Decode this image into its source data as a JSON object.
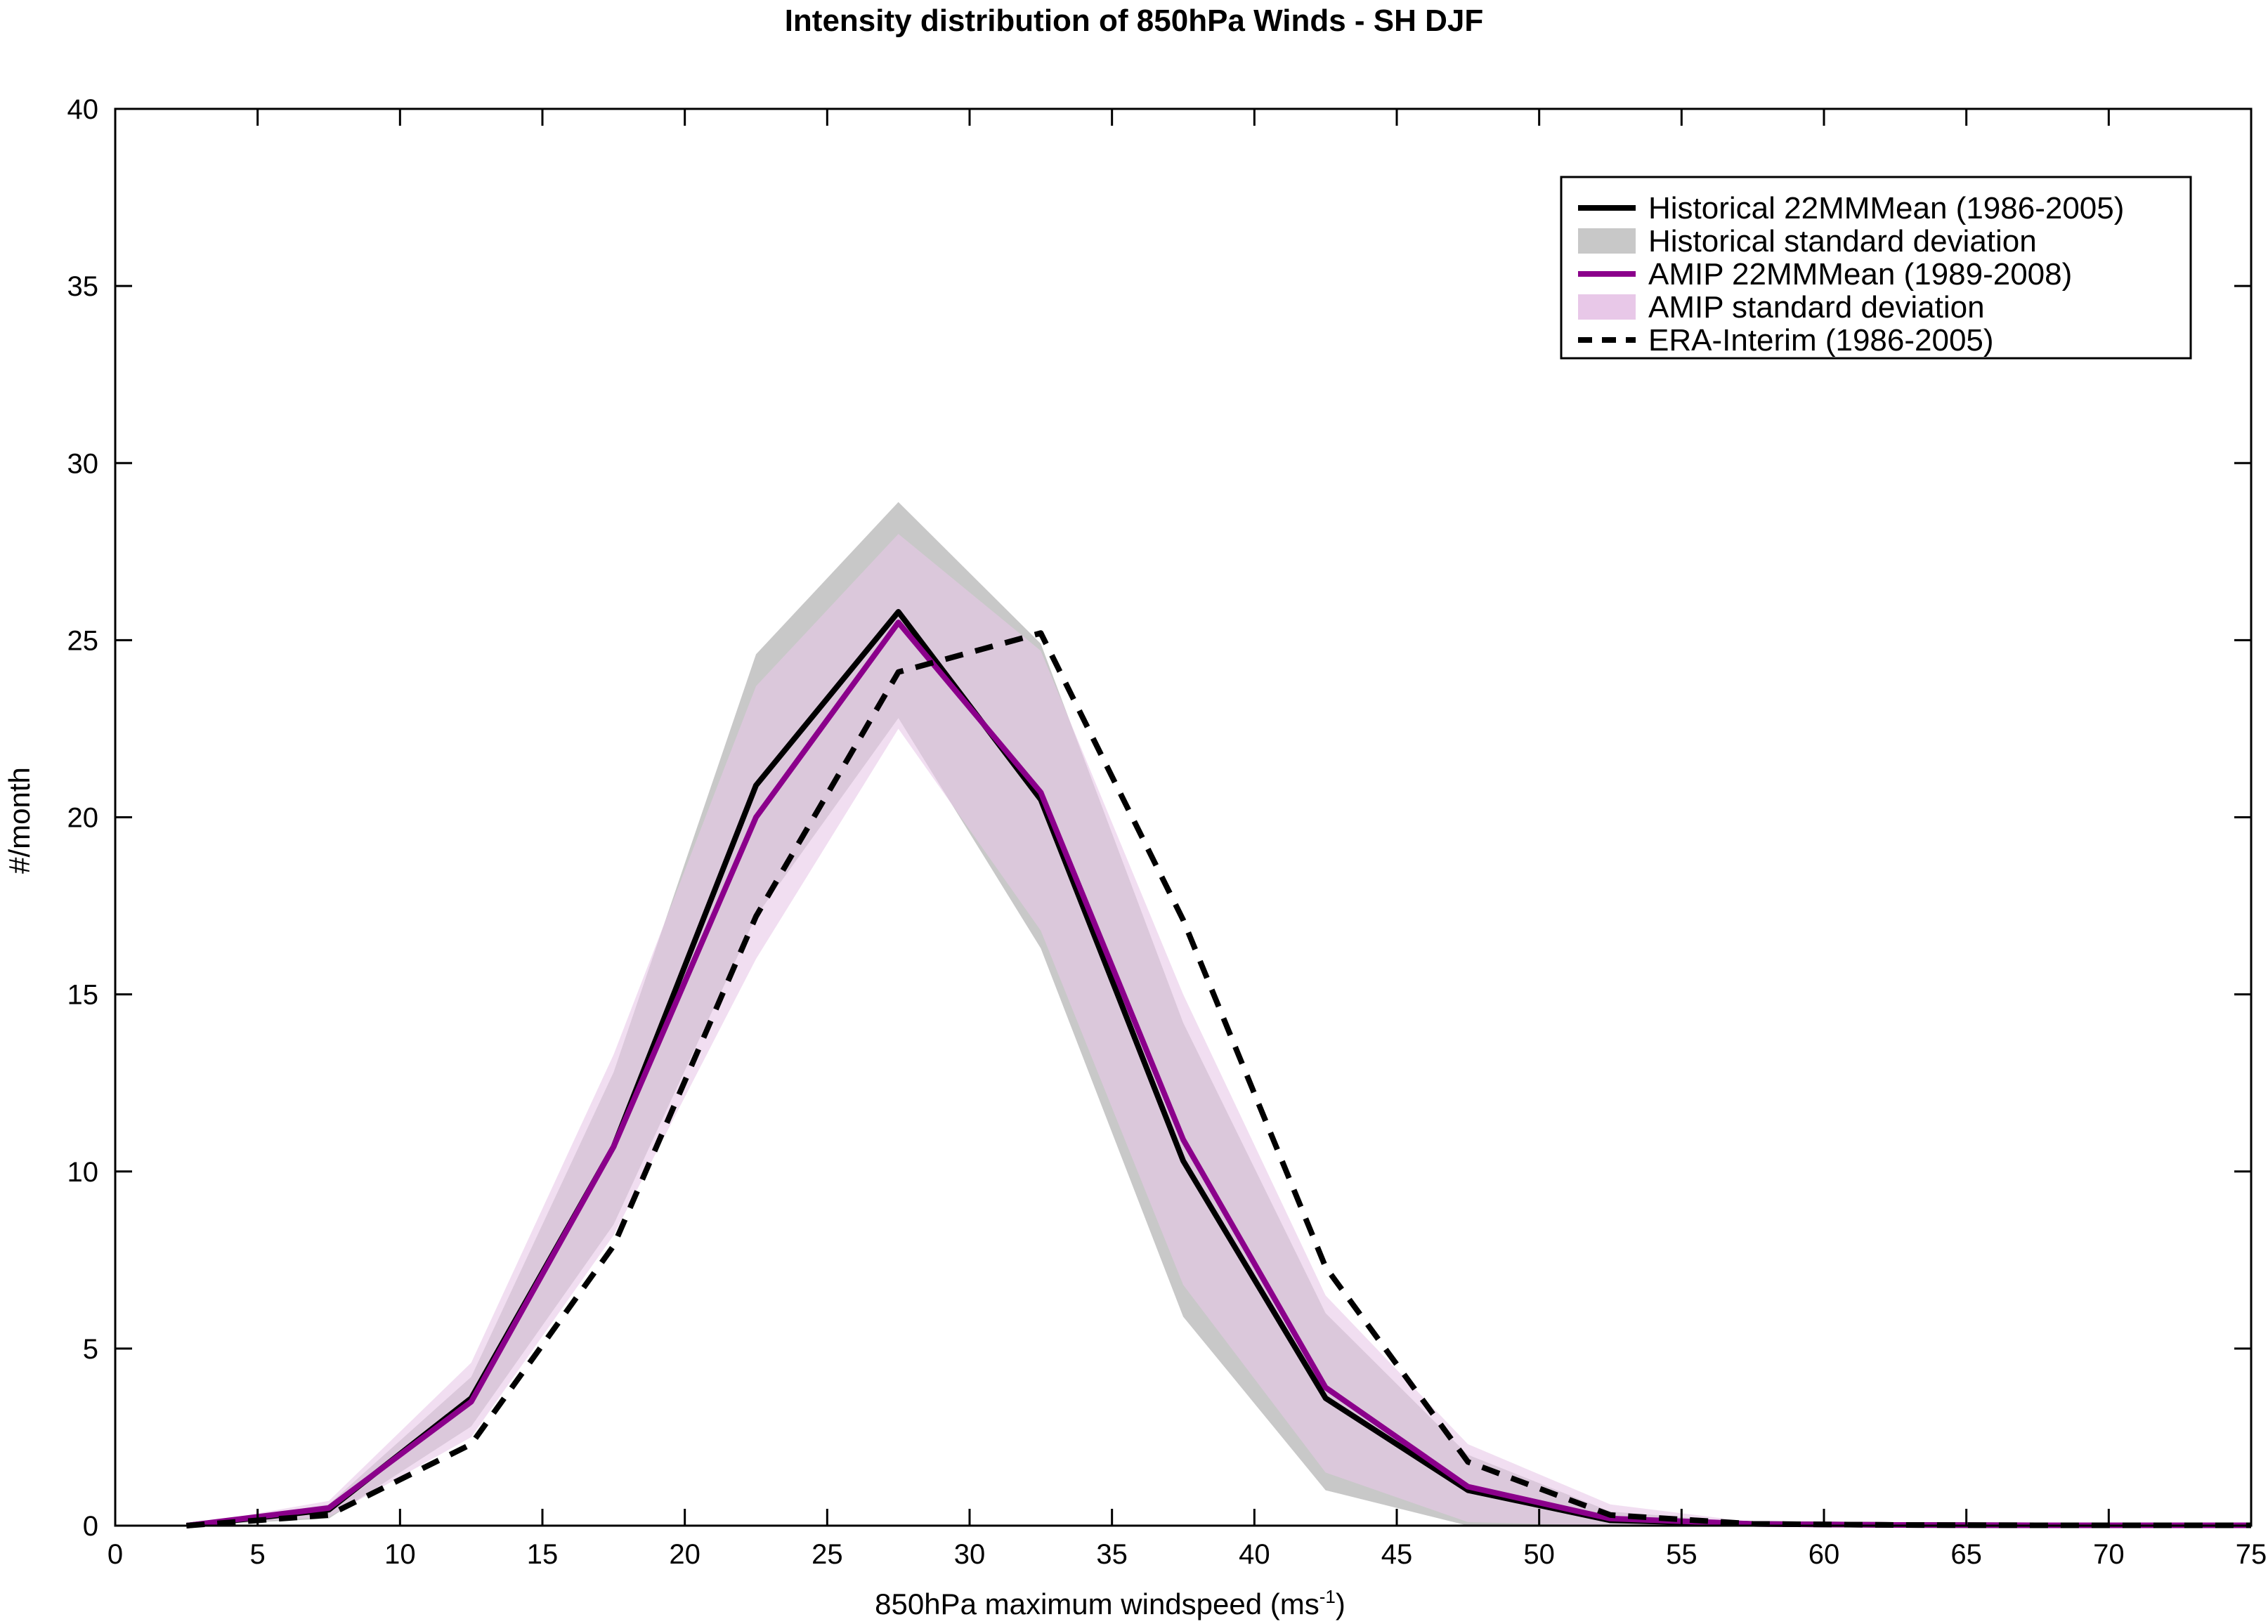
{
  "chart_data": {
    "type": "line",
    "title": "Intensity distribution of 850hPa Winds - SH DJF",
    "xlabel": {
      "text": "850hPa maximum windspeed (ms",
      "superscript": "-1",
      "suffix": ")"
    },
    "ylabel": "#/month",
    "xlim": [
      0,
      75
    ],
    "ylim": [
      0,
      40
    ],
    "xticks": [
      0,
      5,
      10,
      15,
      20,
      25,
      30,
      35,
      40,
      45,
      50,
      55,
      60,
      65,
      70,
      75
    ],
    "yticks": [
      0,
      5,
      10,
      15,
      20,
      25,
      30,
      35,
      40
    ],
    "grid": false,
    "legend_position": "top-right",
    "x": [
      2.5,
      7.5,
      12.5,
      17.5,
      22.5,
      27.5,
      32.5,
      37.5,
      42.5,
      47.5,
      52.5,
      57.5,
      62.5,
      67.5,
      72.5,
      75
    ],
    "bands": [
      {
        "name": "Historical standard deviation",
        "color": "#c8c8c8",
        "upper": [
          0.0,
          0.6,
          4.2,
          12.8,
          24.6,
          28.9,
          24.9,
          14.2,
          6.0,
          2.0,
          0.4,
          0.08,
          0.04,
          0.02,
          0.02,
          0.02
        ],
        "lower": [
          0.0,
          0.2,
          2.8,
          8.5,
          17.2,
          22.8,
          16.3,
          5.9,
          1.0,
          0.0,
          0.0,
          0.0,
          0.0,
          0.0,
          0.0,
          0.0
        ]
      },
      {
        "name": "AMIP standard deviation",
        "color": "#e8c8e8",
        "upper": [
          0.0,
          0.7,
          4.6,
          13.3,
          23.7,
          28.0,
          24.7,
          15.0,
          6.5,
          2.3,
          0.6,
          0.1,
          0.05,
          0.03,
          0.02,
          0.02
        ],
        "lower": [
          0.0,
          0.25,
          2.5,
          8.2,
          16.0,
          22.5,
          16.8,
          6.8,
          1.5,
          0.1,
          0.0,
          0.0,
          0.0,
          0.0,
          0.0,
          0.0
        ]
      }
    ],
    "series": [
      {
        "name": "Historical 22MMMean (1986-2005)",
        "color": "#000000",
        "dash": "solid",
        "values": [
          0.0,
          0.45,
          3.6,
          10.7,
          20.9,
          25.8,
          20.5,
          10.3,
          3.6,
          1.0,
          0.15,
          0.05,
          0.02,
          0.01,
          0.01,
          0.01
        ]
      },
      {
        "name": "AMIP 22MMMean (1989-2008)",
        "color": "#8b008b",
        "dash": "solid",
        "values": [
          0.0,
          0.5,
          3.5,
          10.7,
          20.0,
          25.5,
          20.7,
          10.9,
          3.9,
          1.1,
          0.2,
          0.05,
          0.02,
          0.01,
          0.01,
          0.01
        ]
      },
      {
        "name": "ERA-Interim (1986-2005)",
        "color": "#000000",
        "dash": "dashed",
        "values": [
          0.0,
          0.3,
          2.3,
          7.9,
          17.2,
          24.1,
          25.2,
          17.1,
          7.3,
          1.8,
          0.3,
          0.05,
          0.02,
          0.01,
          0.01,
          0.01
        ]
      }
    ],
    "legend": [
      {
        "label": "Historical 22MMMean (1986-2005)",
        "kind": "line",
        "color": "#000000",
        "dash": "solid"
      },
      {
        "label": "Historical standard deviation",
        "kind": "patch",
        "color": "#c8c8c8"
      },
      {
        "label": "AMIP 22MMMean (1989-2008)",
        "kind": "line",
        "color": "#8b008b",
        "dash": "solid"
      },
      {
        "label": "AMIP standard deviation",
        "kind": "patch",
        "color": "#e8c8e8"
      },
      {
        "label": "ERA-Interim (1986-2005)",
        "kind": "line",
        "color": "#000000",
        "dash": "dashed"
      }
    ]
  }
}
